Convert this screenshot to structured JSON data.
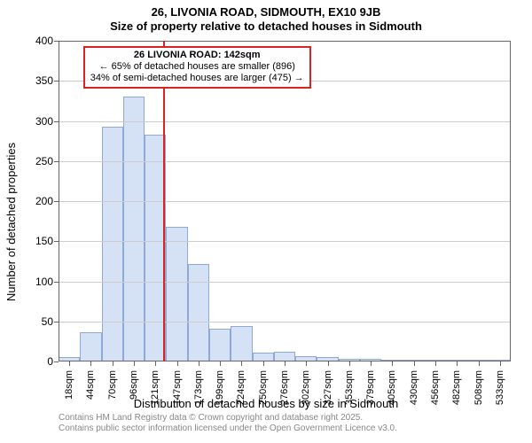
{
  "chart": {
    "type": "histogram",
    "title_line1": "26, LIVONIA ROAD, SIDMOUTH, EX10 9JB",
    "title_line2": "Size of property relative to detached houses in Sidmouth",
    "y_axis_title": "Number of detached properties",
    "x_axis_title": "Distribution of detached houses by size in Sidmouth",
    "background_color": "#ffffff",
    "grid_color": "#cccccc",
    "axis_color": "#666666",
    "bar_fill": "#d5e2f6",
    "bar_border": "#8fa9d6",
    "bar_width_ratio": 1.0,
    "y": {
      "min": 0,
      "max": 400,
      "ticks": [
        0,
        50,
        100,
        150,
        200,
        250,
        300,
        350,
        400
      ]
    },
    "x_labels": [
      "18sqm",
      "44sqm",
      "70sqm",
      "96sqm",
      "121sqm",
      "147sqm",
      "173sqm",
      "199sqm",
      "224sqm",
      "250sqm",
      "276sqm",
      "302sqm",
      "327sqm",
      "353sqm",
      "379sqm",
      "405sqm",
      "430sqm",
      "456sqm",
      "482sqm",
      "508sqm",
      "533sqm"
    ],
    "values": [
      5,
      37,
      293,
      330,
      283,
      168,
      122,
      41,
      44,
      11,
      12,
      7,
      6,
      3,
      3,
      2,
      0,
      0,
      1,
      0,
      1
    ],
    "marker": {
      "color": "#dd2222",
      "position_index": 4.85,
      "annotation": {
        "line1": "26 LIVONIA ROAD: 142sqm",
        "line2": "← 65% of detached houses are smaller (896)",
        "line3": "34% of semi-detached houses are larger (475) →"
      }
    },
    "footer_line1": "Contains HM Land Registry data © Crown copyright and database right 2025.",
    "footer_line2": "Contains public sector information licensed under the Open Government Licence v3.0.",
    "title_fontsize": 13,
    "axis_label_fontsize": 13,
    "tick_fontsize": 12
  }
}
